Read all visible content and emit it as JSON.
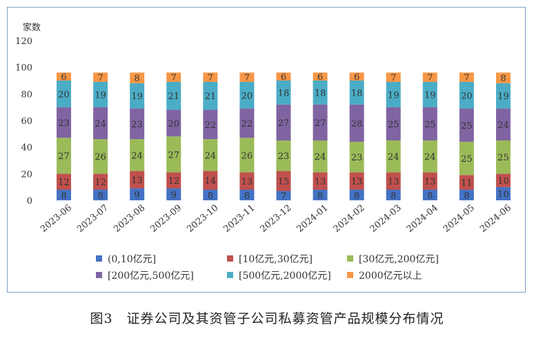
{
  "chart_data": {
    "type": "bar",
    "stacked": true,
    "ylabel": "家数",
    "ylim": [
      0,
      120
    ],
    "yticks": [
      0,
      20,
      40,
      60,
      80,
      100,
      120
    ],
    "grid": false,
    "legend_position": "bottom",
    "categories": [
      "2023-06",
      "2023-07",
      "2023-08",
      "2023-09",
      "2023-10",
      "2023-11",
      "2023-12",
      "2024-01",
      "2024-02",
      "2024-03",
      "2024-04",
      "2024-05",
      "2024-06"
    ],
    "series": [
      {
        "name": "(0,10亿元]",
        "color": "#4472c4",
        "values": [
          8,
          8,
          9,
          9,
          8,
          8,
          7,
          8,
          8,
          8,
          8,
          8,
          10
        ]
      },
      {
        "name": "[10亿元,30亿元]",
        "color": "#c0504d",
        "values": [
          12,
          12,
          13,
          12,
          14,
          13,
          15,
          13,
          13,
          13,
          13,
          11,
          10
        ]
      },
      {
        "name": "[30亿元,200亿元]",
        "color": "#9bbb59",
        "values": [
          27,
          26,
          24,
          27,
          24,
          26,
          23,
          24,
          23,
          24,
          24,
          25,
          25
        ]
      },
      {
        "name": "[200亿元,500亿元]",
        "color": "#8064a2",
        "values": [
          23,
          24,
          23,
          20,
          22,
          22,
          27,
          27,
          28,
          25,
          25,
          25,
          24
        ]
      },
      {
        "name": "[500亿元,2000亿元]",
        "color": "#4bacc6",
        "values": [
          20,
          19,
          19,
          21,
          21,
          20,
          18,
          18,
          18,
          19,
          19,
          20,
          19
        ]
      },
      {
        "name": "2000亿元以上",
        "color": "#f79646",
        "values": [
          6,
          7,
          8,
          7,
          7,
          7,
          6,
          6,
          6,
          7,
          7,
          7,
          8
        ]
      }
    ]
  },
  "caption": "图3　证券公司及其资管子公司私募资管产品规模分布情况"
}
